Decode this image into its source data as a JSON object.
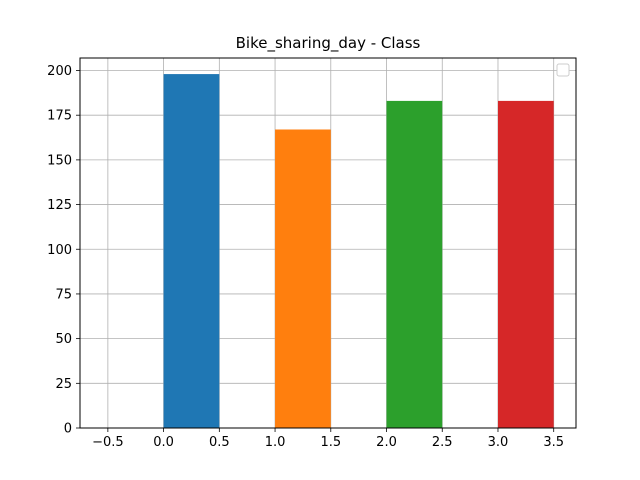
{
  "chart_data": {
    "type": "bar",
    "title": "Bike_sharing_day - Class",
    "xlabel": "",
    "ylabel": "",
    "x": [
      0.25,
      1.25,
      2.25,
      3.25
    ],
    "bar_width": 0.5,
    "values": [
      198,
      167,
      183,
      183
    ],
    "colors": [
      "#1f77b4",
      "#ff7f0e",
      "#2ca02c",
      "#d62728"
    ],
    "xlim": [
      -0.75,
      3.7
    ],
    "ylim": [
      0,
      207
    ],
    "xticks": [
      -0.5,
      0.0,
      0.5,
      1.0,
      1.5,
      2.0,
      2.5,
      3.0,
      3.5
    ],
    "xtick_labels": [
      "−0.5",
      "0.0",
      "0.5",
      "1.0",
      "1.5",
      "2.0",
      "2.5",
      "3.0",
      "3.5"
    ],
    "yticks": [
      0,
      25,
      50,
      75,
      100,
      125,
      150,
      175,
      200
    ],
    "ytick_labels": [
      "0",
      "25",
      "50",
      "75",
      "100",
      "125",
      "150",
      "175",
      "200"
    ],
    "grid": true,
    "legend": "top-right",
    "legend_entries": []
  }
}
